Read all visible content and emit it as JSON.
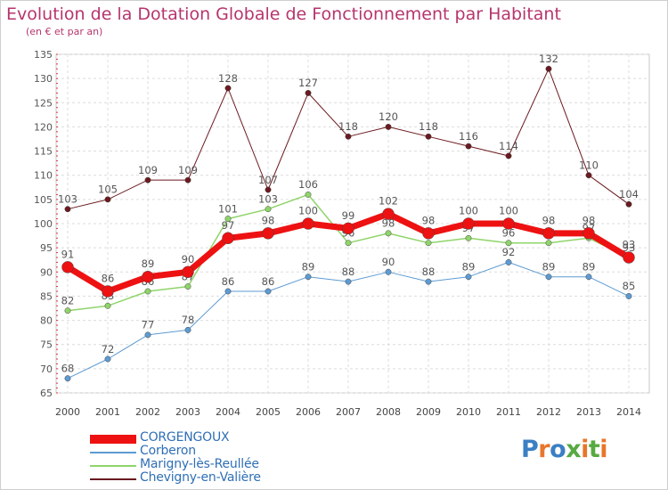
{
  "title": "Evolution de la Dotation Globale de Fonctionnement par Habitant",
  "subtitle": "(en € et par an)",
  "logo": {
    "text": "Proxiti",
    "letters": [
      "P",
      "r",
      "o",
      "x",
      "i",
      "t",
      "i"
    ],
    "colors": [
      "#3b7fc4",
      "#e8762b",
      "#3b7fc4",
      "#57a942",
      "#e8762b",
      "#57a942",
      "#e8762b"
    ]
  },
  "chart_data": {
    "type": "line",
    "title": "Evolution de la Dotation Globale de Fonctionnement par Habitant",
    "subtitle": "(en € et par an)",
    "xlabel": "",
    "ylabel": "",
    "ylim": [
      65,
      135
    ],
    "yticks": [
      65,
      70,
      75,
      80,
      85,
      90,
      95,
      100,
      105,
      110,
      115,
      120,
      125,
      130,
      135
    ],
    "grid": true,
    "legend_position": "bottom-left",
    "x": [
      "2000",
      "2001",
      "2002",
      "2003",
      "2004",
      "2005",
      "2006",
      "2007",
      "2008",
      "2009",
      "2010",
      "2011",
      "2012",
      "2013",
      "2014"
    ],
    "series": [
      {
        "name": "Chevigny-en-Valière",
        "color": "#6b1a1f",
        "width": 1,
        "marker_radius": 3.2,
        "values": [
          103,
          105,
          109,
          109,
          128,
          107,
          127,
          118,
          120,
          118,
          116,
          114,
          132,
          110,
          104
        ],
        "labels": [
          "103",
          "105",
          "109",
          "109",
          "128",
          "107",
          "127",
          "118",
          "120",
          "118",
          "116",
          "114",
          "132",
          "110",
          "104"
        ]
      },
      {
        "name": "Corberon",
        "color": "#5d9bd2",
        "width": 1,
        "marker_radius": 3.2,
        "values": [
          68,
          72,
          77,
          78,
          86,
          86,
          89,
          88,
          90,
          88,
          89,
          92,
          89,
          89,
          85
        ],
        "labels": [
          "68",
          "72",
          "77",
          "78",
          "86",
          "86",
          "89",
          "88",
          "90",
          "88",
          "89",
          "92",
          "89",
          "89",
          "85"
        ]
      },
      {
        "name": "Marigny-lès-Reullée",
        "color": "#8fd46a",
        "width": 1.5,
        "marker_radius": 3.2,
        "values": [
          82,
          83,
          86,
          87,
          101,
          103,
          106,
          96,
          98,
          96,
          97,
          96,
          96,
          97,
          93
        ],
        "labels": [
          "82",
          "83",
          "86",
          "87",
          "101",
          "103",
          "106",
          "96",
          "98",
          "96",
          "97",
          "96",
          "96",
          "97",
          "93"
        ]
      },
      {
        "name": "CORGENGOUX",
        "color": "#ee1111",
        "width": 7,
        "marker_radius": 6.5,
        "values": [
          91,
          86,
          89,
          90,
          97,
          98,
          100,
          99,
          102,
          98,
          100,
          100,
          98,
          98,
          93
        ],
        "labels": [
          "91",
          "86",
          "89",
          "90",
          "97",
          "98",
          "100",
          "99",
          "102",
          "98",
          "100",
          "100",
          "98",
          "98",
          "93"
        ]
      }
    ],
    "legend": [
      {
        "name": "CORGENGOUX",
        "color": "#ee1111",
        "swatch": 10
      },
      {
        "name": "Corberon",
        "color": "#5d9bd2",
        "swatch": 2
      },
      {
        "name": "Marigny-lès-Reullée",
        "color": "#8fd46a",
        "swatch": 2
      },
      {
        "name": "Chevigny-en-Valière",
        "color": "#6b1a1f",
        "swatch": 2
      }
    ]
  }
}
